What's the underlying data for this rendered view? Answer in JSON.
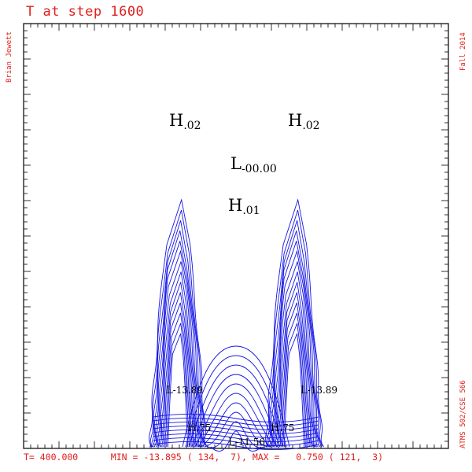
{
  "figure": {
    "title": "T at step 1600",
    "author": "Brian Jewett",
    "term": "Fall 2014",
    "course": "ATMS 502/CSE 566",
    "footer": {
      "time": "T= 400.000",
      "min": "MIN = -13.895 ( 134,  7)",
      "max": "MAX =   0.750 ( 121,  3)"
    }
  },
  "colors": {
    "annotation": "#e0201e",
    "contour": "#1414e6",
    "frame": "#000000",
    "labels": "#000000"
  },
  "chart_data": {
    "type": "contour",
    "grid_size": [
      600,
      600
    ],
    "step": 1600,
    "time": 400.0,
    "min": {
      "value": -13.895,
      "i": 134,
      "j": 7
    },
    "max": {
      "value": 0.75,
      "i": 121,
      "j": 3
    },
    "extrema_labels": [
      {
        "kind": "H",
        "value": ".02"
      },
      {
        "kind": "H",
        "value": ".02"
      },
      {
        "kind": "L",
        "value": "-00.00"
      },
      {
        "kind": "H",
        "value": ".01"
      },
      {
        "kind": "L",
        "value": "-13.89"
      },
      {
        "kind": "L",
        "value": "-13.89"
      },
      {
        "kind": "H",
        "value": ".75"
      },
      {
        "kind": "H",
        "value": ".75"
      },
      {
        "kind": "L",
        "value": "-11.56"
      }
    ],
    "contour_color": "#1414e6"
  }
}
